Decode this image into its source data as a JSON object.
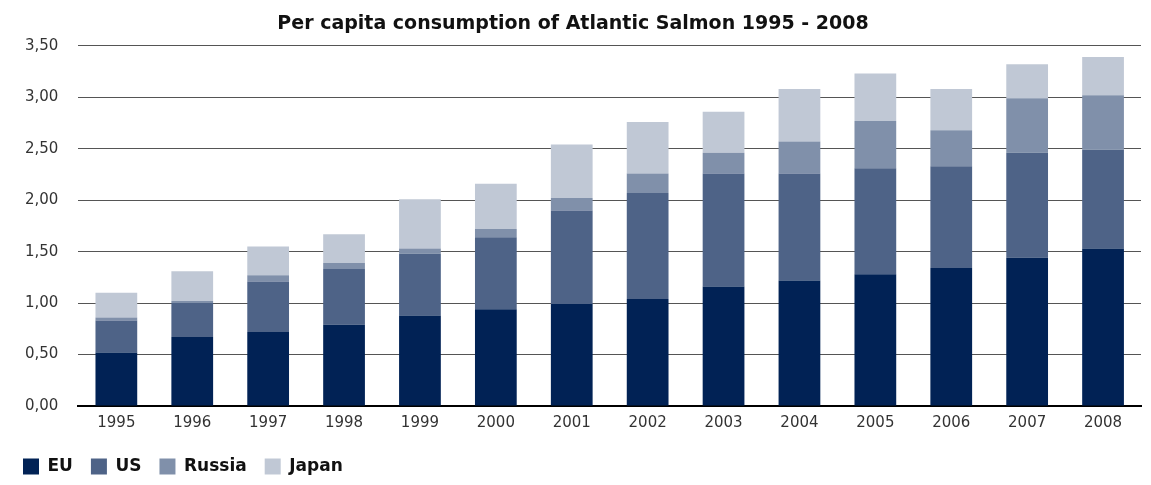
{
  "chart_data": {
    "type": "bar",
    "title": "Per capita consumption of Atlantic Salmon 1995 - 2008",
    "stacked": true,
    "grid": "y",
    "legend": "bottom left",
    "categories": [
      "1995",
      "1996",
      "1997",
      "1998",
      "1999",
      "2000",
      "2001",
      "2002",
      "2003",
      "2004",
      "2005",
      "2006",
      "2007",
      "2008"
    ],
    "series": [
      {
        "name": "EU",
        "color": "#012255",
        "values": [
          0.52,
          0.67,
          0.72,
          0.79,
          0.88,
          0.94,
          0.99,
          1.04,
          1.16,
          1.22,
          1.28,
          1.34,
          1.44,
          1.53
        ]
      },
      {
        "name": "US",
        "color": "#4e6387",
        "values": [
          0.31,
          0.33,
          0.49,
          0.54,
          0.6,
          0.7,
          0.91,
          1.03,
          1.1,
          1.04,
          1.03,
          0.99,
          1.02,
          0.96
        ]
      },
      {
        "name": "Russia",
        "color": "#8090aa",
        "values": [
          0.03,
          0.02,
          0.06,
          0.06,
          0.05,
          0.08,
          0.12,
          0.19,
          0.2,
          0.31,
          0.46,
          0.35,
          0.53,
          0.53
        ]
      },
      {
        "name": "Japan",
        "color": "#c0c8d5",
        "values": [
          0.24,
          0.29,
          0.28,
          0.28,
          0.48,
          0.44,
          0.52,
          0.5,
          0.4,
          0.51,
          0.46,
          0.4,
          0.33,
          0.37
        ]
      }
    ],
    "ylim": [
      0,
      3.5
    ],
    "yticks": [
      {
        "value": 0,
        "label": "0,00"
      },
      {
        "value": 0.5,
        "label": "0,50"
      },
      {
        "value": 1,
        "label": "1,00"
      },
      {
        "value": 1.5,
        "label": "1,50"
      },
      {
        "value": 2,
        "label": "2,00"
      },
      {
        "value": 2.5,
        "label": "2,50"
      },
      {
        "value": 3,
        "label": "3,00"
      },
      {
        "value": 3.5,
        "label": "3,50"
      }
    ]
  }
}
